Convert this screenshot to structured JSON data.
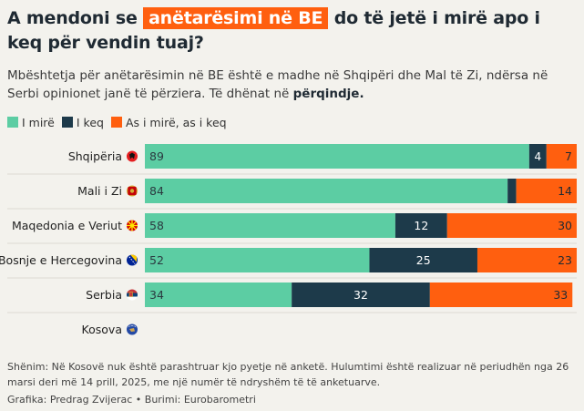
{
  "title": {
    "part1": "A mendoni se ",
    "highlight": "anëtarësimi në BE",
    "part2": " do të jetë i mirë apo i keq për vendin tuaj?"
  },
  "subtitle": {
    "text": "Mbështetja për anëtarësimin në BE është e madhe në Shqipëri dhe Mal të Zi, ndërsa në Serbi opinionet janë të përziera. Të dhënat në ",
    "bold": "përqindje."
  },
  "legend": [
    {
      "label": "I mirë",
      "color": "#5ccda3"
    },
    {
      "label": "I keq",
      "color": "#1d3a4a"
    },
    {
      "label": "As i mirë, as i keq",
      "color": "#ff5f0f"
    }
  ],
  "chart_data": {
    "type": "bar",
    "orientation": "horizontal",
    "stacked": true,
    "categories": [
      "Shqipëria",
      "Mali i Zi",
      "Maqedonia e Veriut",
      "Bosnje e Hercegovina",
      "Serbia",
      "Kosova"
    ],
    "flags": [
      "flag-albania-icon",
      "flag-montenegro-icon",
      "flag-north-macedonia-icon",
      "flag-bosnia-icon",
      "flag-serbia-icon",
      "flag-kosovo-icon"
    ],
    "series": [
      {
        "name": "I mirë",
        "color": "#5ccda3",
        "values": [
          89,
          84,
          58,
          52,
          34,
          null
        ]
      },
      {
        "name": "I keq",
        "color": "#1d3a4a",
        "values": [
          4,
          2,
          12,
          25,
          32,
          null
        ]
      },
      {
        "name": "As i mirë, as i keq",
        "color": "#ff5f0f",
        "values": [
          7,
          14,
          30,
          23,
          33,
          null
        ]
      }
    ],
    "labeled": [
      [
        true,
        true,
        true
      ],
      [
        true,
        false,
        true
      ],
      [
        true,
        true,
        true
      ],
      [
        true,
        true,
        true
      ],
      [
        true,
        true,
        true
      ],
      [
        false,
        false,
        false
      ]
    ],
    "xlim": [
      0,
      100
    ]
  },
  "footnote": "Shënim: Në Kosovë nuk është parashtruar kjo pyetje në anketë. Hulumtimi është realizuar në periudhën nga 26 marsi deri më 14 prill, 2025, me një numër të ndryshëm të të anketuarve.",
  "credit": "Grafika: Predrag Zvijerac • Burimi: Eurobarometri"
}
